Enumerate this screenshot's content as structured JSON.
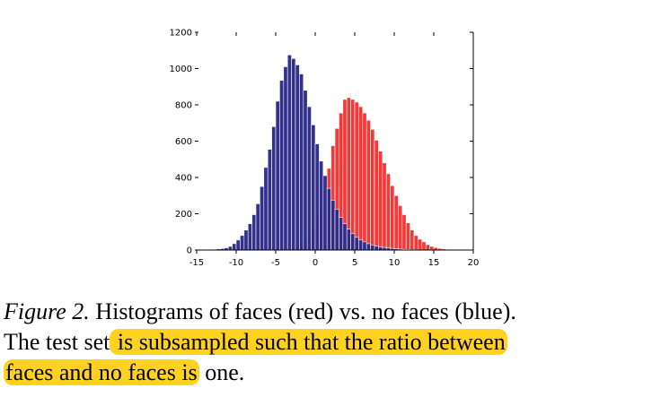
{
  "chart_data": {
    "type": "bar",
    "title": "",
    "xlabel": "",
    "ylabel": "",
    "xlim": [
      -15,
      20
    ],
    "ylim": [
      0,
      1200
    ],
    "x_ticks": [
      "-15",
      "-10",
      "-5",
      "0",
      "5",
      "10",
      "15",
      "20"
    ],
    "y_ticks": [
      "0",
      "200",
      "400",
      "600",
      "800",
      "1000",
      "1200"
    ],
    "bin_width": 0.5,
    "grid": false,
    "legend": "none",
    "series": [
      {
        "color": "#f23a3a",
        "x": [
          -3.5,
          -3,
          -2.5,
          -2,
          -1.5,
          -1,
          -0.5,
          0,
          0.5,
          1,
          1.5,
          2,
          2.5,
          3,
          3.5,
          4,
          4.5,
          5,
          5.5,
          6,
          6.5,
          7,
          7.5,
          8,
          8.5,
          9,
          9.5,
          10,
          10.5,
          11,
          11.5,
          12,
          12.5,
          13,
          13.5,
          14,
          14.5,
          15,
          15.5,
          16,
          16.5
        ],
        "values": [
          5,
          10,
          20,
          35,
          55,
          85,
          125,
          175,
          235,
          330,
          450,
          575,
          670,
          755,
          830,
          840,
          830,
          815,
          790,
          755,
          715,
          665,
          605,
          545,
          480,
          420,
          355,
          300,
          245,
          195,
          150,
          110,
          80,
          60,
          45,
          30,
          20,
          14,
          9,
          6,
          3
        ]
      },
      {
        "color": "#2b2a8a",
        "x": [
          -14,
          -13.5,
          -13,
          -12.5,
          -12,
          -11.5,
          -11,
          -10.5,
          -10,
          -9.5,
          -9,
          -8.5,
          -8,
          -7.5,
          -7,
          -6.5,
          -6,
          -5.5,
          -5,
          -4.5,
          -4,
          -3.5,
          -3,
          -2.5,
          -2,
          -1.5,
          -1,
          -0.5,
          0,
          0.5,
          1,
          1.5,
          2,
          2.5,
          3,
          3.5,
          4,
          4.5,
          5,
          5.5,
          6,
          6.5,
          7,
          7.5,
          8,
          8.5,
          9,
          9.5,
          10,
          10.5,
          11,
          11.5,
          12,
          12.5,
          13,
          13.5,
          14
        ],
        "values": [
          2,
          3,
          4,
          6,
          8,
          12,
          20,
          35,
          55,
          80,
          110,
          145,
          195,
          255,
          350,
          455,
          555,
          680,
          820,
          935,
          1010,
          1075,
          1055,
          1020,
          970,
          880,
          790,
          690,
          585,
          490,
          410,
          340,
          275,
          225,
          180,
          145,
          115,
          90,
          70,
          55,
          45,
          35,
          28,
          22,
          17,
          14,
          11,
          9,
          7,
          5,
          4,
          3,
          2,
          2,
          1,
          1,
          1
        ]
      }
    ]
  },
  "caption": {
    "figure_label": "Figure 2.",
    "line1_text": " Histograms of faces (red) vs.  no faces (blue).",
    "line2_plain": "The test set",
    "line2_highlight": " is subsampled such that the ratio between",
    "line3_highlight": "faces and no faces is",
    "line3_plain": "one."
  },
  "colors": {
    "highlight": "#ffd21f",
    "faces": "#f23a3a",
    "no_faces": "#2b2a8a"
  }
}
